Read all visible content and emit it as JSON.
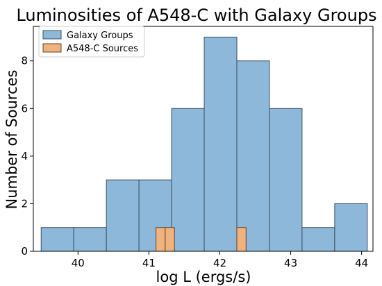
{
  "chart_data": {
    "type": "bar",
    "title": "Luminosities of A548-C with Galaxy Groups",
    "xlabel": "log L (ergs/s)",
    "ylabel": "Number of Sources",
    "xlim": [
      39.37,
      44.16
    ],
    "ylim": [
      0,
      9.45
    ],
    "x_ticks": [
      "40",
      "41",
      "42",
      "43",
      "44"
    ],
    "y_ticks": [
      "0",
      "2",
      "4",
      "6",
      "8"
    ],
    "legend_position": "upper-left",
    "grid": false,
    "series": [
      {
        "name": "Galaxy Groups",
        "color": "#8db8da",
        "edge_color": "#3c4f5e",
        "bins": [
          {
            "x0": 39.48,
            "x1": 39.94,
            "count": 1
          },
          {
            "x0": 39.94,
            "x1": 40.4,
            "count": 1
          },
          {
            "x0": 40.4,
            "x1": 40.86,
            "count": 3
          },
          {
            "x0": 40.86,
            "x1": 41.32,
            "count": 3
          },
          {
            "x0": 41.32,
            "x1": 41.78,
            "count": 6
          },
          {
            "x0": 41.78,
            "x1": 42.24,
            "count": 9
          },
          {
            "x0": 42.24,
            "x1": 42.7,
            "count": 8
          },
          {
            "x0": 42.7,
            "x1": 43.16,
            "count": 6
          },
          {
            "x0": 43.16,
            "x1": 43.62,
            "count": 1
          },
          {
            "x0": 43.62,
            "x1": 44.08,
            "count": 2
          }
        ]
      },
      {
        "name": "A548-C Sources",
        "color": "#f0b37e",
        "edge_color": "#5e4430",
        "bins": [
          {
            "x0": 41.1,
            "x1": 41.23,
            "count": 1
          },
          {
            "x0": 41.23,
            "x1": 41.36,
            "count": 1
          },
          {
            "x0": 42.24,
            "x1": 42.37,
            "count": 1
          }
        ]
      }
    ]
  }
}
